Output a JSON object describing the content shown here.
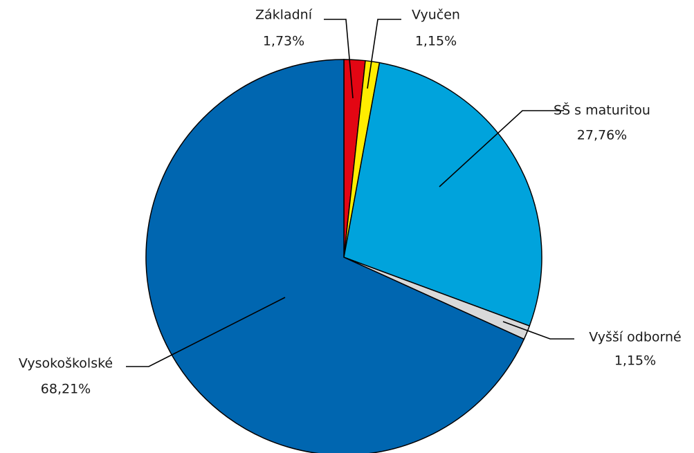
{
  "chart_data": {
    "type": "pie",
    "categories": [
      "Základní",
      "Vyučen",
      "SŠ s maturitou",
      "Vyšší odborné",
      "Vysokoškolské"
    ],
    "values": [
      1.73,
      1.15,
      27.76,
      1.15,
      68.21
    ],
    "value_labels": [
      "1,73%",
      "1,15%",
      "27,76%",
      "1,15%",
      "68,21%"
    ],
    "colors": [
      "#e30613",
      "#ffed00",
      "#00a3dc",
      "#d9d9d9",
      "#0066b0"
    ]
  }
}
